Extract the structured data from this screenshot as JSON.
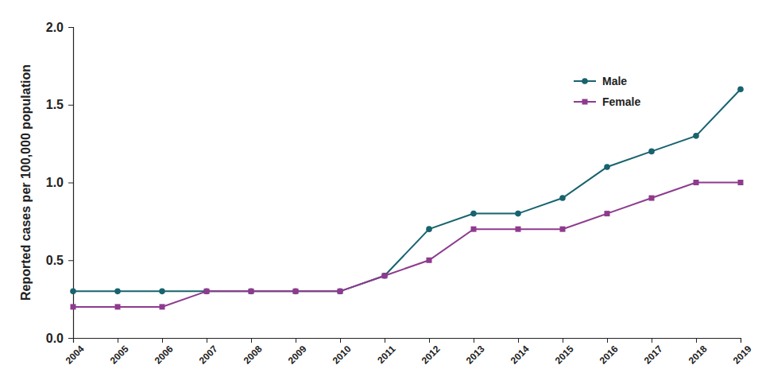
{
  "chart_data": {
    "type": "line",
    "y_label": "Reported cases per 100,000 population",
    "categories": [
      "2004",
      "2005",
      "2006",
      "2007",
      "2008",
      "2009",
      "2010",
      "2011",
      "2012",
      "2013",
      "2014",
      "2015",
      "2016",
      "2017",
      "2018",
      "2019"
    ],
    "series": [
      {
        "name": "Male",
        "color": "#17636e",
        "marker": "circle",
        "values": [
          0.3,
          0.3,
          0.3,
          0.3,
          0.3,
          0.3,
          0.3,
          0.4,
          0.7,
          0.8,
          0.8,
          0.9,
          1.1,
          1.2,
          1.3,
          1.6
        ]
      },
      {
        "name": "Female",
        "color": "#8e3a8e",
        "marker": "square",
        "values": [
          0.2,
          0.2,
          0.2,
          0.3,
          0.3,
          0.3,
          0.3,
          0.4,
          0.5,
          0.7,
          0.7,
          0.7,
          0.8,
          0.9,
          1.0,
          1.0
        ]
      }
    ],
    "ylim": [
      0,
      2
    ],
    "yticks": [
      {
        "value": 0,
        "label": "0.0"
      },
      {
        "value": 0.5,
        "label": "0.5"
      },
      {
        "value": 1,
        "label": "1.0"
      },
      {
        "value": 1.5,
        "label": "1.5"
      },
      {
        "value": 2,
        "label": "2.0"
      }
    ],
    "legend": "upper right",
    "grid": false
  }
}
